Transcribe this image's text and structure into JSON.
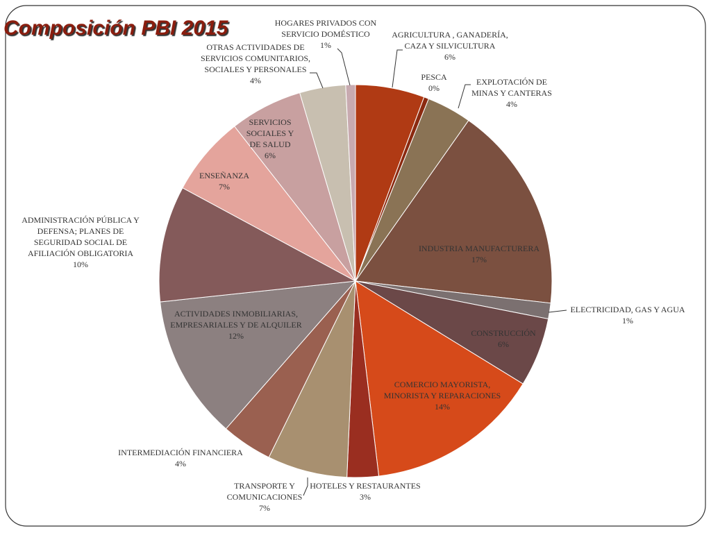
{
  "chart_data": {
    "type": "pie",
    "title": "Composición PBI 2015",
    "categories": [
      "AGRICULTURA , GANADERÍA, CAZA Y SILVICULTURA",
      "PESCA",
      "EXPLOTACIÓN DE MINAS Y CANTERAS",
      "INDUSTRIA MANUFACTURERA",
      "ELECTRICIDAD, GAS Y AGUA",
      "CONSTRUCCIÓN",
      "COMERCIO MAYORISTA, MINORISTA Y REPARACIONES",
      "HOTELES Y RESTAURANTES",
      "TRANSPORTE Y COMUNICACIONES",
      "INTERMEDIACIÓN FINANCIERA",
      "ACTIVIDADES INMOBILIARIAS, EMPRESARIALES Y DE ALQUILER",
      "ADMINISTRACIÓN PÚBLICA Y DEFENSA; PLANES DE SEGURIDAD SOCIAL DE AFILIACIÓN OBLIGATORIA",
      "ENSEÑANZA",
      "SERVICIOS SOCIALES Y DE SALUD",
      "OTRAS ACTIVIDADES DE SERVICIOS COMUNITARIOS, SOCIALES Y PERSONALES",
      "HOGARES PRIVADOS CON SERVICIO DOMÉSTICO"
    ],
    "values": [
      5.7,
      0.4,
      3.7,
      17.1,
      1.3,
      5.7,
      14.4,
      2.6,
      6.6,
      4.2,
      11.9,
      9.6,
      6.6,
      6.0,
      3.8,
      0.8
    ],
    "value_labels": [
      "6%",
      "0%",
      "4%",
      "17%",
      "1%",
      "6%",
      "14%",
      "3%",
      "7%",
      "4%",
      "12%",
      "10%",
      "7%",
      "6%",
      "4%",
      "1%"
    ],
    "colors": [
      "#b03a14",
      "#8b2a10",
      "#8a7355",
      "#7b5040",
      "#7b7070",
      "#6b4848",
      "#d64a1a",
      "#9a2e20",
      "#a89070",
      "#9a6050",
      "#8c8080",
      "#845a5a",
      "#e4a49c",
      "#c8a0a0",
      "#c8bfb0",
      "#c8aab0"
    ]
  }
}
